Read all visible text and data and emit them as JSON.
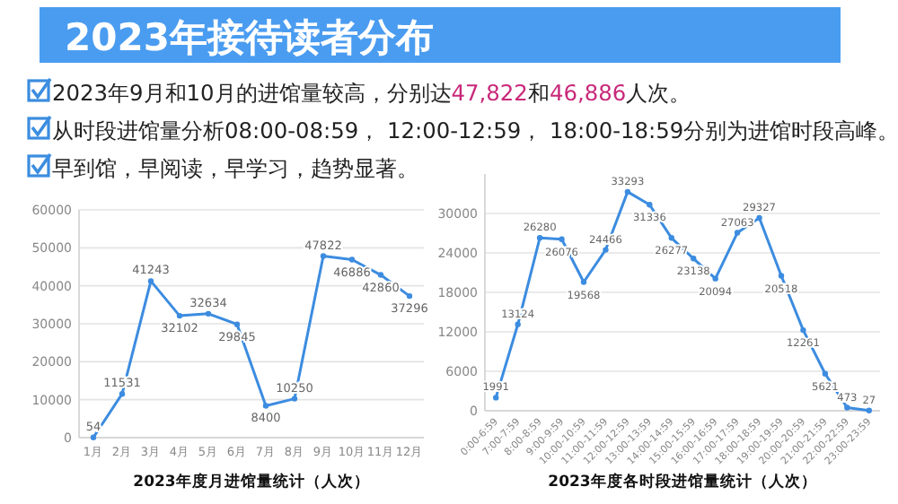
{
  "chart_data": [
    {
      "type": "other",
      "title": "2023年接待读者分布",
      "annotations": [
        "2023年9月和10月的进馆量较高，分别达47,822和46,886人次。",
        "从时段进馆量分析08:00-08:59， 12:00-12:59， 18:00-18:59分别为进馆时段高峰。",
        "早到馆，早阅读，早学习，趋势显著。"
      ]
    },
    {
      "type": "line",
      "title": "2023年度月进馆量统计（人次）",
      "categories": [
        "1月",
        "2月",
        "3月",
        "4月",
        "5月",
        "6月",
        "7月",
        "8月",
        "9月",
        "10月",
        "11月",
        "12月"
      ],
      "series": [
        {
          "color": "#3c8ce0",
          "values": [
            54,
            11531,
            41243,
            32102,
            32634,
            29845,
            8400,
            10250,
            47822,
            46886,
            42860,
            37296
          ]
        }
      ],
      "ylim": [
        0,
        60000
      ],
      "yticks": [
        0,
        10000,
        20000,
        30000,
        40000,
        50000,
        60000
      ],
      "grid": "y",
      "marker": "circle",
      "data_labels": true
    },
    {
      "type": "line",
      "title": "2023年度各时段进馆量统计（人次）",
      "categories": [
        "0:00-6:59",
        "7:00-7:59",
        "8:00-8:59",
        "9:00-9:59",
        "10:00-10:59",
        "11:00-11:59",
        "12:00-12:59",
        "13:00-13:59",
        "14:00-14:59",
        "15:00-15:59",
        "16:00-16:59",
        "17:00-17:59",
        "18:00-18:59",
        "19:00-19:59",
        "20:00-20:59",
        "21:00-21:59",
        "22:00-22:59",
        "23:00-23:59"
      ],
      "series": [
        {
          "color": "#3c8ce0",
          "values": [
            1991,
            13124,
            26280,
            26076,
            19568,
            24466,
            33293,
            31336,
            26277,
            23138,
            20094,
            27063,
            29327,
            20518,
            12261,
            5621,
            473,
            27
          ]
        }
      ],
      "ylim": [
        0,
        36000
      ],
      "yticks": [
        0,
        6000,
        12000,
        18000,
        24000,
        30000
      ],
      "grid": "y",
      "marker": "circle",
      "data_labels": true
    }
  ]
}
